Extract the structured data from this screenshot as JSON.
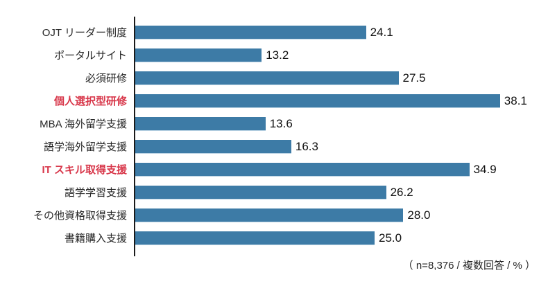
{
  "chart_data": {
    "type": "bar",
    "orientation": "horizontal",
    "categories": [
      "OJT リーダー制度",
      "ポータルサイト",
      "必須研修",
      "個人選択型研修",
      "MBA 海外留学支援",
      "語学海外留学支援",
      "IT スキル取得支援",
      "語学学習支援",
      "その他資格取得支援",
      "書籍購入支援"
    ],
    "values": [
      24.1,
      13.2,
      27.5,
      38.1,
      13.6,
      16.3,
      34.9,
      26.2,
      28.0,
      25.0
    ],
    "highlight_indices": [
      3,
      6
    ],
    "bar_color": "#3D7BA6",
    "label_color": "#262626",
    "highlight_label_color": "#D8374A",
    "axis_color": "#1A1A1A",
    "xlim": [
      0,
      40
    ],
    "grid": false,
    "legend": false,
    "title": "",
    "xlabel": "",
    "ylabel": "",
    "value_labels": [
      "24.1",
      "13.2",
      "27.5",
      "38.1",
      "13.6",
      "16.3",
      "34.9",
      "26.2",
      "28.0",
      "25.0"
    ],
    "footnote": "（ n=8,376 / 複数回答 / % ）"
  }
}
